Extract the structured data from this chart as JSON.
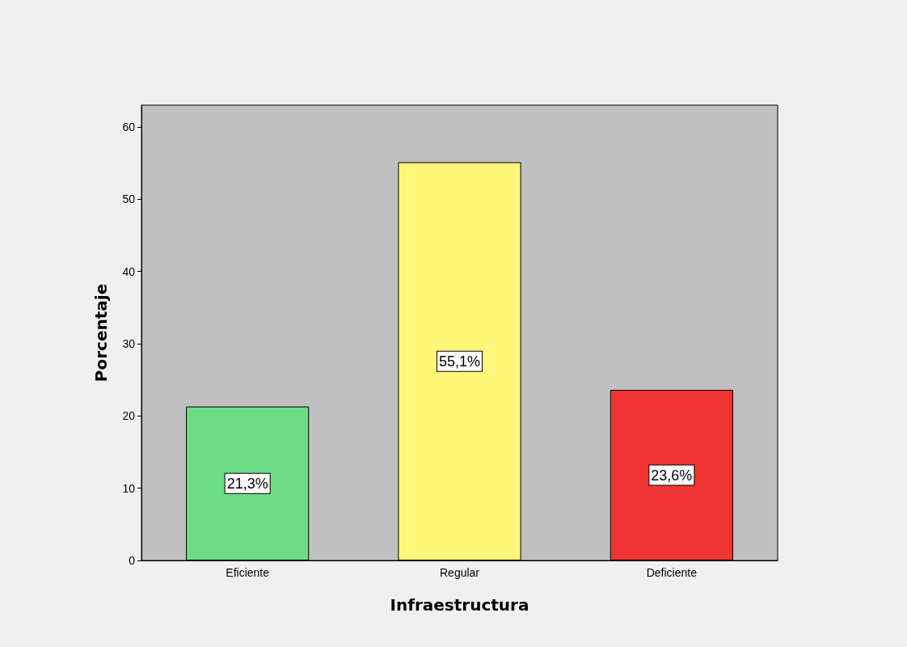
{
  "chart_data": {
    "type": "bar",
    "xlabel": "Infraestructura",
    "ylabel": "Porcentaje",
    "categories": [
      "Eficiente",
      "Regular",
      "Deficiente"
    ],
    "values": [
      21.3,
      55.1,
      23.6
    ],
    "colors": [
      "#6ddc84",
      "#fff67a",
      "#f03434"
    ],
    "value_labels": [
      "21,3%",
      "55,1%",
      "23,6%"
    ],
    "ylim": [
      0,
      63
    ],
    "yticks": [
      0,
      10,
      20,
      30,
      40,
      50,
      60
    ],
    "grid": false
  }
}
